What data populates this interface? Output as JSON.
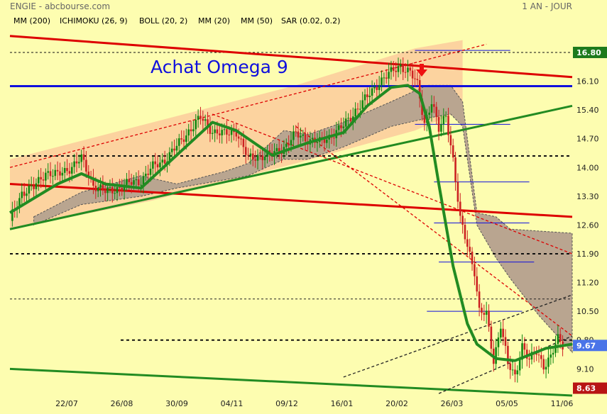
{
  "header": {
    "title": "ENGIE - abcbourse.com",
    "period": "1 AN - JOUR"
  },
  "annotation": "Achat Omega 9",
  "colors": {
    "background": "#fdfdb0",
    "mm200": "#0000cc",
    "ichimoku": "#0000cc",
    "boll": "#ff9900",
    "mm20": "#228b22",
    "mm50": "#dd0000",
    "sar": "#cc0000",
    "candle_up": "#118811",
    "candle_down": "#cc2222",
    "cloud": "#b9a590",
    "boll_fill": "#fbcb9c"
  },
  "chart_data": {
    "type": "candlestick",
    "legend": [
      {
        "name": "MM (200)",
        "color": "#0000cc"
      },
      {
        "name": "ICHIMOKU (26, 9)",
        "color": "#0000cc"
      },
      {
        "name": "BOLL (20, 2)",
        "color": "#ff9900"
      },
      {
        "name": "MM (20)",
        "color": "#228b22"
      },
      {
        "name": "MM (50)",
        "color": "#dd0000"
      },
      {
        "name": "SAR (0.02, 0.2)",
        "color": "#cc0000"
      }
    ],
    "x_ticks": [
      "22/07",
      "26/08",
      "30/09",
      "04/11",
      "09/12",
      "16/01",
      "20/02",
      "26/03",
      "05/05",
      "11/06"
    ],
    "y_ticks": [
      "16.80",
      "16.10",
      "15.40",
      "14.70",
      "14.00",
      "13.30",
      "12.60",
      "11.90",
      "11.20",
      "10.50",
      "9.80",
      "9.10"
    ],
    "ylim": [
      8.45,
      17.3
    ],
    "last_price": "9.67",
    "low_marker": "8.63",
    "horizontal_levels": [
      16.8,
      14.28,
      11.9,
      9.8
    ],
    "blue_level": 15.98,
    "close_path": [
      [
        0,
        12.7
      ],
      [
        5,
        13.4
      ],
      [
        10,
        13.5
      ],
      [
        15,
        13.9
      ],
      [
        20,
        13.8
      ],
      [
        25,
        14.0
      ],
      [
        30,
        14.2
      ],
      [
        35,
        13.6
      ],
      [
        40,
        13.4
      ],
      [
        45,
        13.5
      ],
      [
        50,
        13.6
      ],
      [
        55,
        13.7
      ],
      [
        60,
        14.0
      ],
      [
        65,
        14.2
      ],
      [
        70,
        14.5
      ],
      [
        75,
        14.9
      ],
      [
        80,
        15.2
      ],
      [
        85,
        14.9
      ],
      [
        90,
        14.8
      ],
      [
        95,
        14.9
      ],
      [
        100,
        14.2
      ],
      [
        105,
        14.3
      ],
      [
        110,
        14.3
      ],
      [
        115,
        14.5
      ],
      [
        120,
        14.8
      ],
      [
        125,
        14.7
      ],
      [
        130,
        14.6
      ],
      [
        135,
        14.8
      ],
      [
        140,
        15.0
      ],
      [
        145,
        15.4
      ],
      [
        150,
        15.7
      ],
      [
        155,
        16.1
      ],
      [
        160,
        16.3
      ],
      [
        164,
        16.5
      ],
      [
        168,
        16.3
      ],
      [
        171,
        16.0
      ],
      [
        174,
        15.1
      ],
      [
        177,
        15.6
      ],
      [
        180,
        14.9
      ],
      [
        183,
        15.3
      ],
      [
        186,
        14.2
      ],
      [
        189,
        12.7
      ],
      [
        192,
        12.1
      ],
      [
        195,
        11.5
      ],
      [
        197,
        10.5
      ],
      [
        200,
        10.4
      ],
      [
        203,
        9.3
      ],
      [
        206,
        10.2
      ],
      [
        209,
        9.2
      ],
      [
        212,
        8.9
      ],
      [
        215,
        9.7
      ],
      [
        218,
        9.3
      ],
      [
        221,
        9.5
      ],
      [
        224,
        9.2
      ],
      [
        227,
        9.4
      ],
      [
        230,
        9.8
      ],
      [
        233,
        9.6
      ],
      [
        236,
        9.7
      ]
    ],
    "mm20_path": [
      [
        0,
        12.9
      ],
      [
        20,
        13.6
      ],
      [
        30,
        13.85
      ],
      [
        40,
        13.6
      ],
      [
        55,
        13.5
      ],
      [
        70,
        14.3
      ],
      [
        85,
        15.1
      ],
      [
        95,
        14.9
      ],
      [
        110,
        14.3
      ],
      [
        125,
        14.6
      ],
      [
        140,
        14.85
      ],
      [
        150,
        15.5
      ],
      [
        160,
        15.95
      ],
      [
        167,
        16.0
      ],
      [
        172,
        15.8
      ],
      [
        176,
        15.0
      ],
      [
        180,
        13.6
      ],
      [
        186,
        11.6
      ],
      [
        192,
        10.2
      ],
      [
        196,
        9.7
      ],
      [
        204,
        9.35
      ],
      [
        212,
        9.3
      ],
      [
        225,
        9.6
      ],
      [
        236,
        9.7
      ]
    ],
    "cloud": {
      "upper": [
        [
          10,
          12.8
        ],
        [
          30,
          13.4
        ],
        [
          55,
          13.8
        ],
        [
          70,
          13.6
        ],
        [
          90,
          13.9
        ],
        [
          100,
          14.1
        ],
        [
          115,
          14.9
        ],
        [
          125,
          14.8
        ],
        [
          140,
          15.1
        ],
        [
          160,
          15.6
        ],
        [
          175,
          16.0
        ],
        [
          185,
          16.0
        ],
        [
          190,
          15.6
        ],
        [
          196,
          12.9
        ],
        [
          204,
          12.8
        ],
        [
          210,
          12.5
        ],
        [
          236,
          12.4
        ]
      ],
      "lower": [
        [
          10,
          12.6
        ],
        [
          30,
          13.1
        ],
        [
          55,
          13.3
        ],
        [
          70,
          13.5
        ],
        [
          90,
          13.7
        ],
        [
          100,
          13.8
        ],
        [
          115,
          14.2
        ],
        [
          125,
          14.2
        ],
        [
          140,
          14.5
        ],
        [
          160,
          15.0
        ],
        [
          175,
          15.2
        ],
        [
          185,
          15.3
        ],
        [
          190,
          15.0
        ],
        [
          196,
          12.6
        ],
        [
          204,
          11.8
        ],
        [
          210,
          11.3
        ],
        [
          222,
          10.4
        ],
        [
          236,
          9.5
        ]
      ]
    },
    "trend_lines": [
      {
        "kind": "resistance",
        "color": "#dd0000",
        "from": [
          0,
          17.2
        ],
        "to": [
          236,
          16.2
        ]
      },
      {
        "kind": "resistance",
        "color": "#dd0000",
        "from": [
          0,
          13.6
        ],
        "to": [
          236,
          12.8
        ]
      },
      {
        "kind": "support",
        "color": "#228b22",
        "from": [
          0,
          12.5
        ],
        "to": [
          236,
          15.5
        ]
      },
      {
        "kind": "support",
        "color": "#228b22",
        "from": [
          0,
          9.1
        ],
        "to": [
          236,
          8.45
        ]
      }
    ]
  }
}
